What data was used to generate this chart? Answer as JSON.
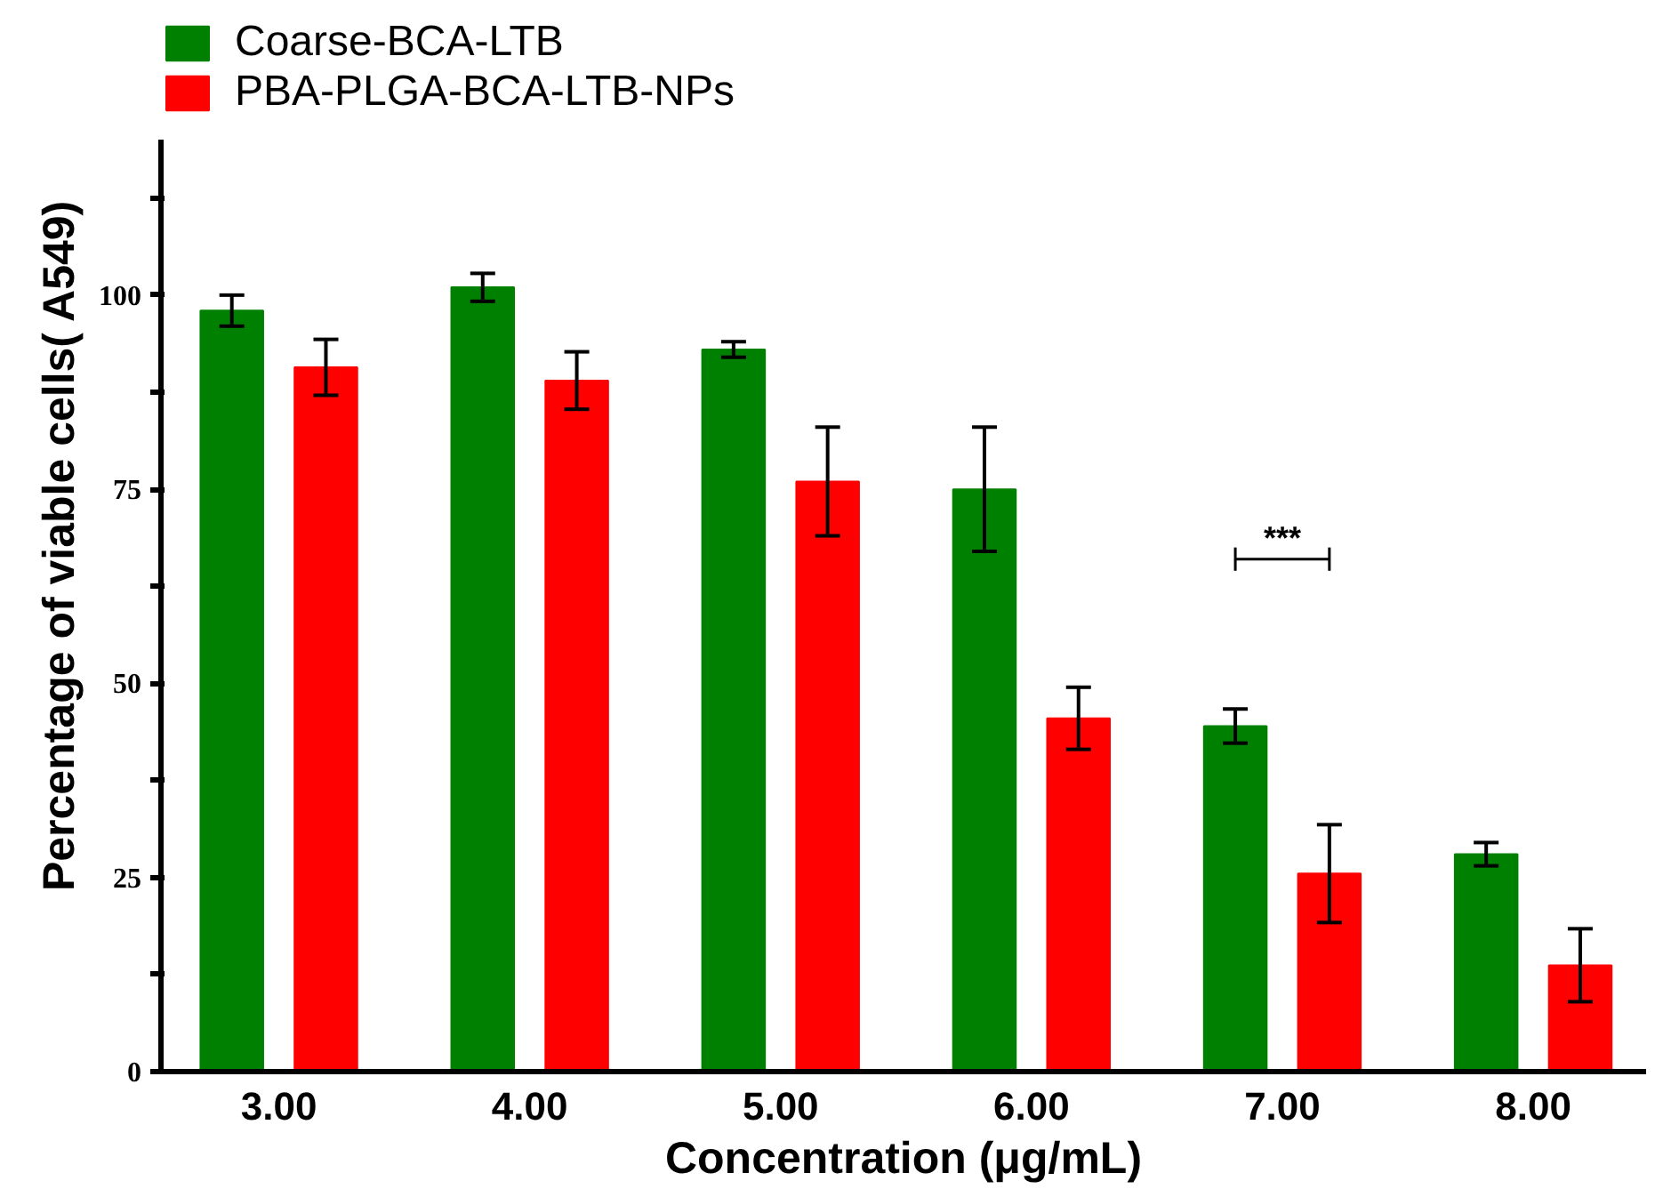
{
  "chart_data": {
    "type": "bar",
    "xlabel": "Concentration (μg/mL)",
    "ylabel": "Percentage of viable cells( A549)",
    "categories": [
      "3.00",
      "4.00",
      "5.00",
      "6.00",
      "7.00",
      "8.00"
    ],
    "series": [
      {
        "name": "Coarse-BCA-LTB",
        "color": "#008000",
        "values": [
          98,
          101,
          93,
          75,
          44.5,
          28
        ],
        "errors": [
          2,
          1.8,
          1,
          8,
          2.2,
          1.5
        ]
      },
      {
        "name": "PBA-PLGA-BCA-LTB-NPs",
        "color": "#ff0000",
        "values": [
          90.7,
          89,
          76,
          45.5,
          25.5,
          13.7
        ],
        "errors": [
          3.6,
          3.7,
          7,
          4,
          6.3,
          4.7
        ]
      }
    ],
    "ylim": [
      0,
      120
    ],
    "yticks": [
      0,
      {
        "value": 12.5,
        "label": null
      },
      25,
      {
        "value": 37.5,
        "label": null
      },
      50,
      {
        "value": 62.5,
        "label": null
      },
      75,
      {
        "value": 87.5,
        "label": null
      },
      100,
      {
        "value": 112.5,
        "label": null
      }
    ],
    "annotations": [
      "***"
    ],
    "legend": "top left",
    "grid": false
  }
}
